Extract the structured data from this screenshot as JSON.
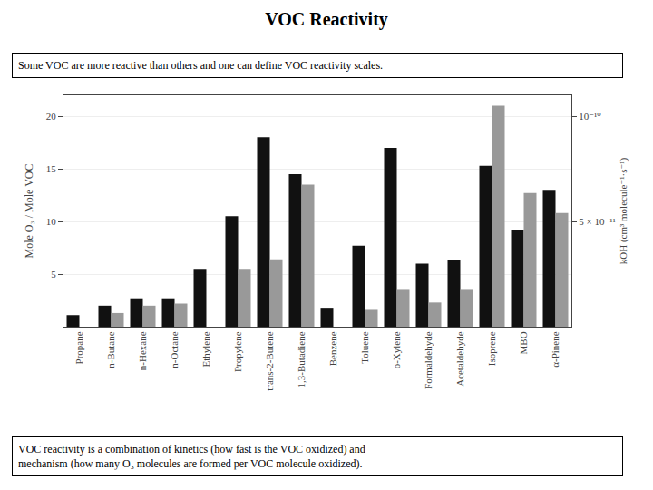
{
  "chart_data": {
    "type": "bar",
    "title": "VOC Reactivity",
    "subtitle": "Some VOC are more reactive than others and one can define VOC reactivity scales.",
    "annotations": [
      "VOC reactivity is a combination of kinetics (how fast is the VOC oxidized) and",
      "mechanism (how many O₃ molecules are formed per VOC molecule oxidized)."
    ],
    "ylabel": "Mole O₃ / Mole VOC",
    "y2label": "kOH (cm³ molecule⁻¹·s⁻¹)",
    "categories": [
      "Propane",
      "n-Butane",
      "n-Hexane",
      "n-Octane",
      "Ethylene",
      "Propylene",
      "trans-2-Butene",
      "1,3-Butadiene",
      "Benzene",
      "Toluene",
      "o-Xylene",
      "Formaldehyde",
      "Acetaldehyde",
      "Isoprene",
      "MBO",
      "α-Pinene"
    ],
    "series": [
      {
        "color": "#111111",
        "values": [
          1.1,
          2.0,
          2.7,
          2.7,
          5.5,
          10.5,
          18.0,
          14.5,
          1.8,
          7.7,
          17.0,
          6.0,
          6.3,
          15.3,
          9.2,
          13.0
        ]
      },
      {
        "color": "#999999",
        "values": [
          0.0,
          1.3,
          2.0,
          2.2,
          0.0,
          5.5,
          6.4,
          13.5,
          0.0,
          1.6,
          3.5,
          2.3,
          3.5,
          21.0,
          12.7,
          10.8
        ]
      }
    ],
    "ylim": [
      0,
      22
    ],
    "yticks": [
      5,
      10,
      15,
      20
    ],
    "y2lim": [
      0,
      22
    ],
    "y2ticks": [
      {
        "value": 10,
        "label": "5 × 10⁻¹¹"
      },
      {
        "value": 20,
        "label": "10⁻¹⁰"
      }
    ],
    "grid": true
  }
}
